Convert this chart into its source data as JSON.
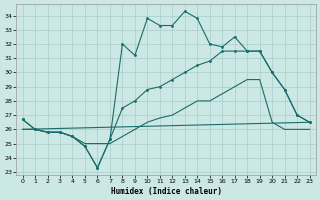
{
  "xlabel": "Humidex (Indice chaleur)",
  "bg_color": "#cce8e4",
  "grid_color": "#aacccc",
  "line_color": "#1a6b6b",
  "xlim": [
    -0.5,
    23.5
  ],
  "ylim": [
    22.8,
    34.8
  ],
  "yticks": [
    23,
    24,
    25,
    26,
    27,
    28,
    29,
    30,
    31,
    32,
    33,
    34
  ],
  "xticks": [
    0,
    1,
    2,
    3,
    4,
    5,
    6,
    7,
    8,
    9,
    10,
    11,
    12,
    13,
    14,
    15,
    16,
    17,
    18,
    19,
    20,
    21,
    22,
    23
  ],
  "series": [
    {
      "x": [
        0,
        1,
        2,
        3,
        4,
        5,
        6,
        7,
        8,
        9,
        10,
        11,
        12,
        13,
        14,
        15,
        16,
        17,
        18,
        19,
        20,
        21,
        22,
        23
      ],
      "y": [
        26.7,
        26.0,
        25.8,
        25.8,
        25.5,
        24.8,
        23.3,
        25.3,
        32.0,
        31.2,
        33.8,
        33.3,
        33.3,
        34.3,
        33.8,
        32.0,
        31.8,
        32.5,
        31.5,
        31.5,
        30.0,
        28.8,
        27.0,
        26.5
      ],
      "marker": true
    },
    {
      "x": [
        0,
        1,
        2,
        3,
        4,
        5,
        6,
        7,
        8,
        9,
        10,
        11,
        12,
        13,
        14,
        15,
        16,
        17,
        18,
        19,
        20,
        21,
        22,
        23
      ],
      "y": [
        26.7,
        26.0,
        25.8,
        25.8,
        25.5,
        24.8,
        23.3,
        25.3,
        27.5,
        28.0,
        28.8,
        29.0,
        29.5,
        30.0,
        30.5,
        30.8,
        31.5,
        31.5,
        31.5,
        31.5,
        30.0,
        28.8,
        27.0,
        26.5
      ],
      "marker": true
    },
    {
      "x": [
        0,
        1,
        2,
        3,
        4,
        5,
        6,
        7,
        8,
        9,
        10,
        11,
        12,
        13,
        14,
        15,
        16,
        17,
        18,
        19,
        20,
        21,
        22,
        23
      ],
      "y": [
        26.0,
        26.0,
        25.8,
        25.8,
        25.5,
        25.0,
        25.0,
        25.0,
        25.5,
        26.0,
        26.5,
        26.8,
        27.0,
        27.5,
        28.0,
        28.0,
        28.5,
        29.0,
        29.5,
        29.5,
        26.5,
        26.0,
        26.0,
        26.0
      ],
      "marker": false
    },
    {
      "x": [
        0,
        23
      ],
      "y": [
        26.0,
        26.5
      ],
      "marker": false
    }
  ]
}
